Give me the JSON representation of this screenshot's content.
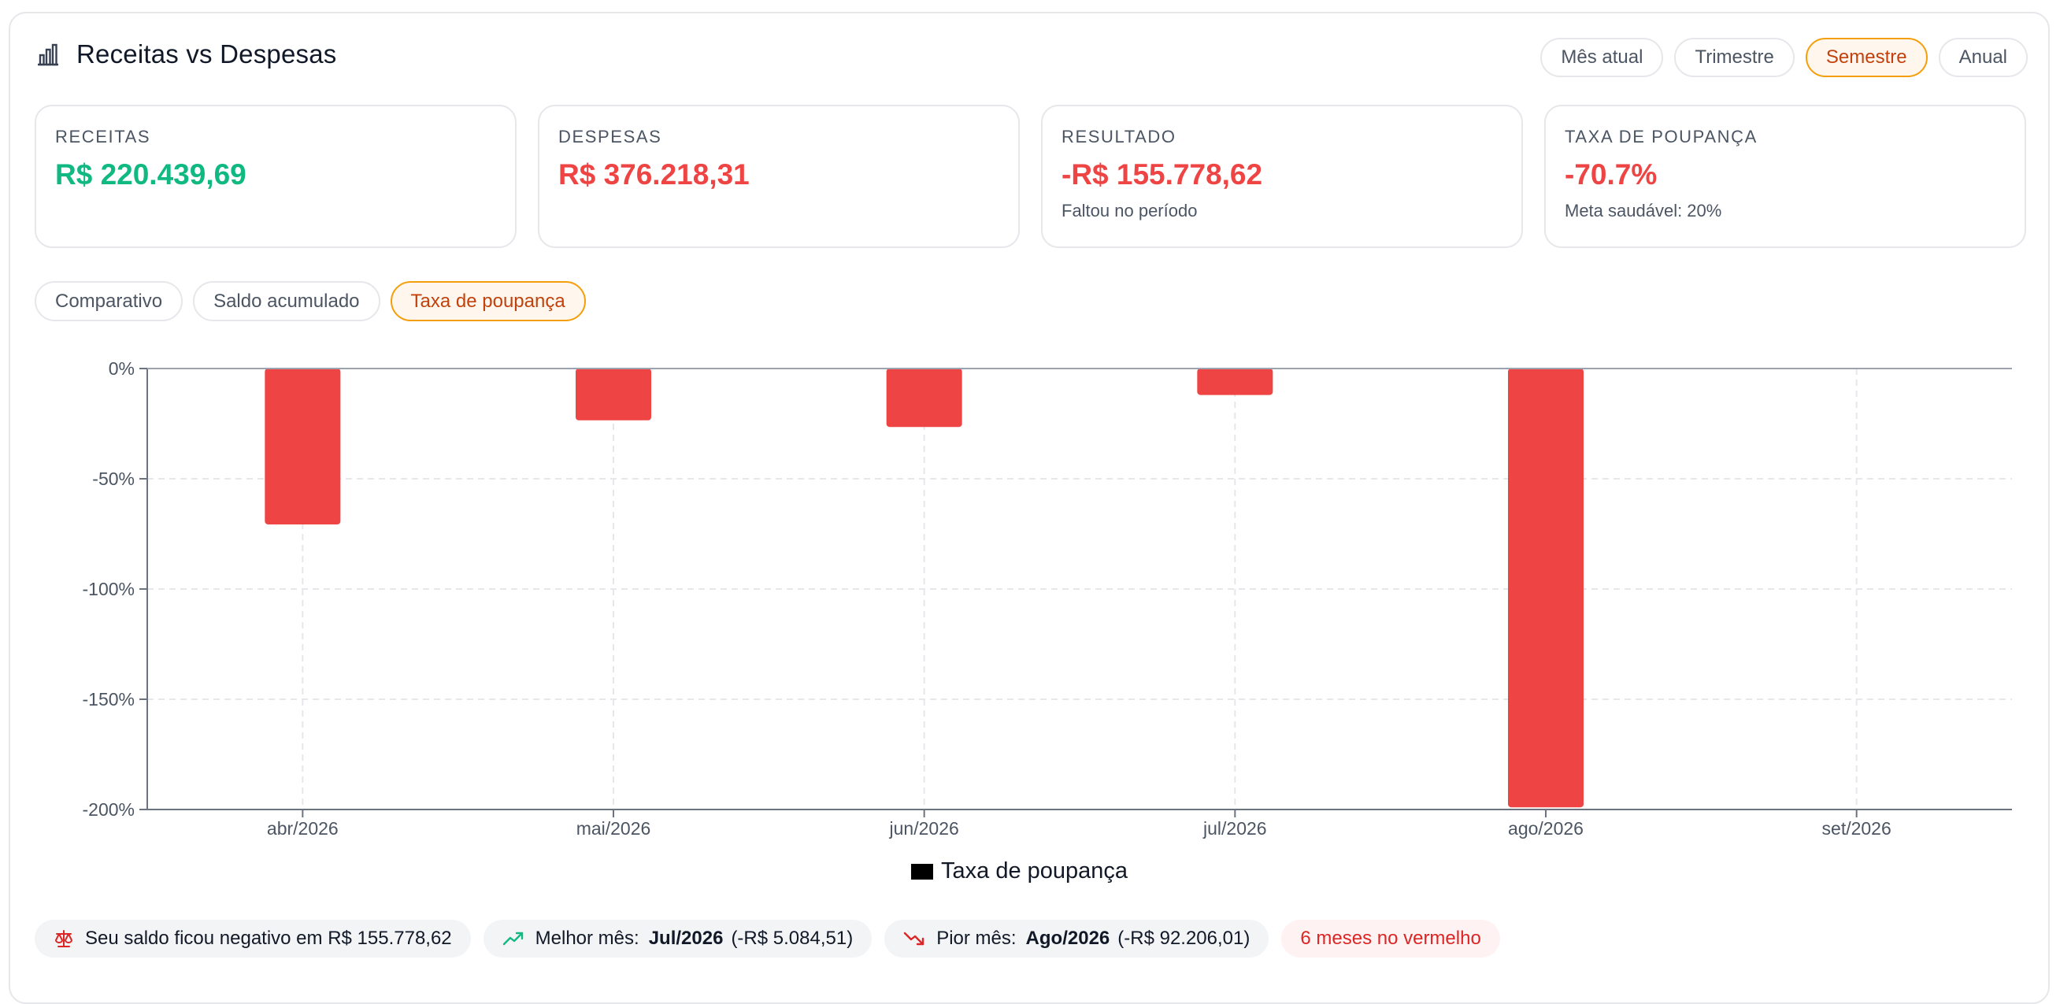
{
  "header": {
    "title": "Receitas vs Despesas",
    "periods": [
      "Mês atual",
      "Trimestre",
      "Semestre",
      "Anual"
    ],
    "active_period": "Semestre"
  },
  "kpis": {
    "receitas": {
      "label": "RECEITAS",
      "value": "R$ 220.439,69"
    },
    "despesas": {
      "label": "DESPESAS",
      "value": "R$ 376.218,31"
    },
    "resultado": {
      "label": "RESULTADO",
      "value": "-R$ 155.778,62",
      "sub": "Faltou no período"
    },
    "poupanca": {
      "label": "TAXA DE POUPANÇA",
      "value": "-70.7%",
      "sub": "Meta saudável: 20%"
    }
  },
  "view_tabs": [
    "Comparativo",
    "Saldo acumulado",
    "Taxa de poupança"
  ],
  "active_view": "Taxa de poupança",
  "colors": {
    "accent": "#f59e0b",
    "positive": "#10b981",
    "negative": "#ef4444"
  },
  "chart_data": {
    "type": "bar",
    "categories": [
      "abr/2026",
      "mai/2026",
      "jun/2026",
      "jul/2026",
      "ago/2026",
      "set/2026"
    ],
    "series": [
      {
        "name": "Taxa de poupança",
        "values": [
          -70.7,
          -23.5,
          -26.5,
          -12.0,
          -199.0,
          null
        ]
      }
    ],
    "y_ticks": [
      "0%",
      "-50%",
      "-100%",
      "-150%",
      "-200%"
    ],
    "ylim": [
      -200,
      0
    ],
    "grid": true,
    "legend": "bottom-center",
    "bar_color": "#ef4444"
  },
  "insights": {
    "saldo": "Seu saldo ficou negativo em R$ 155.778,62",
    "melhor_label": "Melhor mês:",
    "melhor_month": "Jul/2026",
    "melhor_value": "(-R$ 5.084,51)",
    "pior_label": "Pior mês:",
    "pior_month": "Ago/2026",
    "pior_value": "(-R$ 92.206,01)",
    "vermelho": "6 meses no vermelho"
  }
}
